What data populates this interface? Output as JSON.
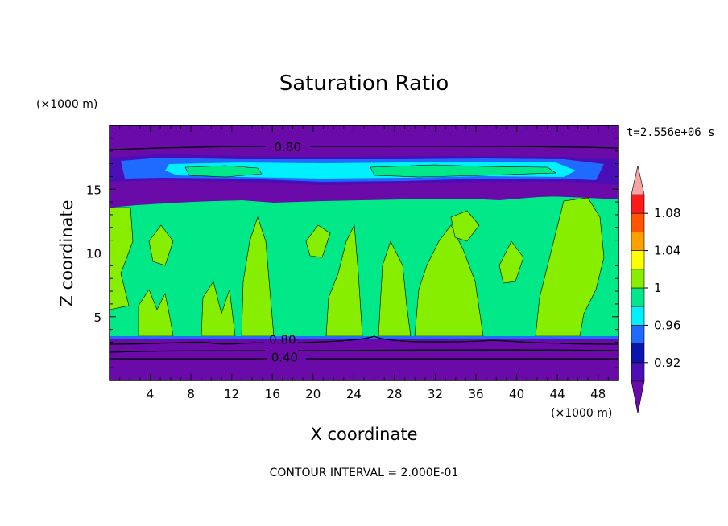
{
  "chart_data": {
    "type": "heatmap",
    "title": "Saturation Ratio",
    "xlabel": "X coordinate",
    "ylabel": "Z coordinate",
    "x_unit": "(×1000 m)",
    "y_unit": "(×1000 m)",
    "time_label": "t=2.556e+06 s",
    "footer": "CONTOUR INTERVAL = 2.000E-01",
    "xlim": [
      0,
      50
    ],
    "ylim": [
      0,
      20
    ],
    "x_ticks": [
      4,
      8,
      12,
      16,
      20,
      24,
      28,
      32,
      36,
      40,
      44,
      48
    ],
    "y_ticks": [
      5,
      10,
      15
    ],
    "contour_labels": [
      {
        "text": "0.80",
        "x": 17.5,
        "y": 18.3
      },
      {
        "text": "0.80",
        "x": 17.0,
        "y": 3.2
      },
      {
        "text": "0.40",
        "x": 17.2,
        "y": 1.8
      }
    ],
    "colorbar": {
      "ticks": [
        "0.92",
        "0.96",
        "1",
        "1.04",
        "1.08"
      ],
      "colors": [
        "#6a0aa8",
        "#4b0db5",
        "#0a14b0",
        "#1f6bff",
        "#00f0ff",
        "#00e888",
        "#88ee00",
        "#ffff00",
        "#ffa000",
        "#ff5500",
        "#ff1a1a",
        "#f5a3a3"
      ]
    },
    "bands": [
      {
        "level": "<0.92",
        "z_range": [
          0,
          3.3
        ],
        "color": "#6a0aa8"
      },
      {
        "level": "0.96-1",
        "z_range": [
          3.3,
          14.5
        ],
        "color": "#00e888"
      },
      {
        "level": "1-1.02",
        "z_range": [
          3.5,
          13.5
        ],
        "color": "#88ee00",
        "note": "patchy vertical plumes"
      },
      {
        "level": "<0.92",
        "z_range": [
          14.5,
          15.5
        ],
        "color": "#6a0aa8"
      },
      {
        "level": "0.92-1.0",
        "z_range": [
          15.5,
          17.5
        ],
        "color": "#00f0ff",
        "note": "upper cirrus layer"
      },
      {
        "level": "<0.92",
        "z_range": [
          17.5,
          20
        ],
        "color": "#6a0aa8"
      }
    ]
  }
}
